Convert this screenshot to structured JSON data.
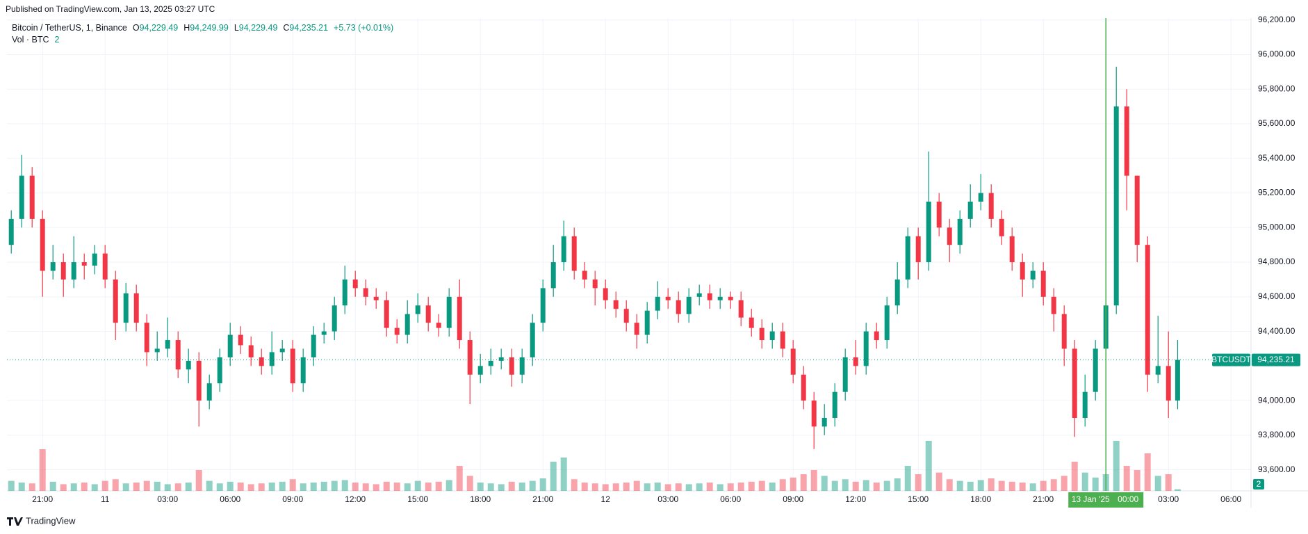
{
  "page": {
    "published": "Published on TradingView.com, Jan 13, 2025 03:27 UTC",
    "brand": "TradingView"
  },
  "chart_data": {
    "type": "candlestick",
    "legend": {
      "symbol": "Bitcoin / TetherUS, 1, Binance",
      "ohlc": [
        {
          "key": "O",
          "value": 94229.49,
          "label": "94,229.49"
        },
        {
          "key": "H",
          "value": 94249.99,
          "label": "94,249.99"
        },
        {
          "key": "L",
          "value": 94229.49,
          "label": "94,229.49"
        },
        {
          "key": "C",
          "value": 94235.21,
          "label": "94,235.21"
        }
      ],
      "change": "+5.73 (+0.01%)",
      "volume_label": "Vol · BTC"
    },
    "up_color": "#089981",
    "down_color": "#f23645",
    "grid": true,
    "x": [
      -4.5,
      -4,
      -3.5,
      -3,
      -2.5,
      -2,
      -1.5,
      -1,
      -0.5,
      0,
      0.5,
      1,
      1.5,
      2,
      2.5,
      3,
      3.5,
      4,
      4.5,
      5,
      5.5,
      6,
      6.5,
      7,
      7.5,
      8,
      8.5,
      9,
      9.5,
      10,
      10.5,
      11,
      11.5,
      12,
      12.5,
      13,
      13.5,
      14,
      14.5,
      15,
      15.5,
      16,
      16.5,
      17,
      17.5,
      18,
      18.5,
      19,
      19.5,
      20,
      20.5,
      21,
      21.5,
      22,
      22.5,
      23,
      23.5,
      24,
      24.5,
      25,
      25.5,
      26,
      26.5,
      27,
      27.5,
      28,
      28.5,
      29,
      29.5,
      30,
      30.5,
      31,
      31.5,
      32,
      32.5,
      33,
      33.5,
      34,
      34.5,
      35,
      35.5,
      36,
      36.5,
      37,
      37.5,
      38,
      38.5,
      39,
      39.5,
      40,
      40.5,
      41,
      41.5,
      42,
      42.5,
      43,
      43.5,
      44,
      44.5,
      45,
      45.5,
      46,
      46.5,
      47,
      47.5,
      48,
      48.5,
      49,
      49.5,
      50,
      50.5,
      51,
      51.44
    ],
    "open": [
      94900,
      95050,
      95300,
      95050,
      94750,
      94800,
      94700,
      94800,
      94780,
      94850,
      94700,
      94450,
      94620,
      94450,
      94280,
      94300,
      94350,
      94180,
      94230,
      94000,
      94100,
      94250,
      94380,
      94320,
      94250,
      94200,
      94280,
      94300,
      94100,
      94250,
      94380,
      94400,
      94550,
      94700,
      94650,
      94600,
      94580,
      94420,
      94380,
      94500,
      94550,
      94450,
      94420,
      94600,
      94350,
      94150,
      94200,
      94230,
      94250,
      94150,
      94250,
      94450,
      94650,
      94800,
      94950,
      94750,
      94700,
      94650,
      94580,
      94530,
      94450,
      94380,
      94520,
      94600,
      94580,
      94500,
      94600,
      94620,
      94580,
      94600,
      94580,
      94480,
      94420,
      94350,
      94400,
      94300,
      94150,
      94000,
      93850,
      93900,
      94050,
      94250,
      94200,
      94400,
      94350,
      94550,
      94700,
      94950,
      94800,
      95150,
      95000,
      94900,
      95050,
      95150,
      95200,
      95050,
      94950,
      94800,
      94700,
      94750,
      94600,
      94500,
      94300,
      93900,
      94050,
      94300,
      94550,
      95700,
      95300,
      94900,
      94150,
      94200,
      94000
    ],
    "high": [
      95100,
      95420,
      95350,
      95100,
      94900,
      94850,
      94950,
      94850,
      94900,
      94900,
      94750,
      94680,
      94670,
      94500,
      94400,
      94480,
      94400,
      94300,
      94280,
      94150,
      94300,
      94450,
      94430,
      94370,
      94300,
      94400,
      94350,
      94350,
      94300,
      94430,
      94450,
      94600,
      94780,
      94750,
      94700,
      94650,
      94630,
      94470,
      94580,
      94620,
      94600,
      94500,
      94650,
      94700,
      94400,
      94270,
      94300,
      94300,
      94300,
      94300,
      94500,
      94700,
      94900,
      95040,
      95000,
      94800,
      94750,
      94700,
      94630,
      94580,
      94500,
      94570,
      94690,
      94650,
      94630,
      94650,
      94670,
      94670,
      94650,
      94630,
      94630,
      94530,
      94470,
      94450,
      94450,
      94350,
      94200,
      94050,
      93980,
      94100,
      94300,
      94350,
      94450,
      94450,
      94600,
      94800,
      95000,
      95000,
      95440,
      95200,
      95050,
      95100,
      95250,
      95310,
      95250,
      95100,
      95000,
      94850,
      94800,
      94800,
      94650,
      94550,
      94350,
      94150,
      94350,
      94650,
      95930,
      95800,
      95300,
      94950,
      94490,
      94400,
      94350
    ],
    "low": [
      94850,
      95000,
      95000,
      94600,
      94700,
      94600,
      94650,
      94700,
      94730,
      94650,
      94350,
      94400,
      94400,
      94200,
      94230,
      94250,
      94130,
      94100,
      93850,
      93950,
      94050,
      94200,
      94270,
      94200,
      94150,
      94150,
      94230,
      94050,
      94050,
      94200,
      94330,
      94350,
      94500,
      94600,
      94550,
      94530,
      94370,
      94330,
      94330,
      94450,
      94400,
      94370,
      94370,
      94300,
      93980,
      94100,
      94150,
      94180,
      94080,
      94100,
      94200,
      94400,
      94600,
      94750,
      94700,
      94650,
      94550,
      94530,
      94480,
      94400,
      94300,
      94330,
      94470,
      94530,
      94450,
      94450,
      94550,
      94530,
      94530,
      94530,
      94430,
      94370,
      94300,
      94300,
      94250,
      94100,
      93950,
      93720,
      93800,
      93850,
      94000,
      94150,
      94150,
      94300,
      94300,
      94500,
      94650,
      94700,
      94750,
      94950,
      94800,
      94850,
      95000,
      95100,
      95000,
      94900,
      94750,
      94600,
      94650,
      94550,
      94400,
      94200,
      93790,
      93850,
      94000,
      94250,
      94500,
      95100,
      94800,
      94050,
      94100,
      93900,
      93950
    ],
    "close": [
      95050,
      95300,
      95050,
      94750,
      94800,
      94700,
      94800,
      94780,
      94850,
      94700,
      94450,
      94620,
      94450,
      94280,
      94300,
      94350,
      94180,
      94230,
      94000,
      94100,
      94250,
      94380,
      94320,
      94250,
      94200,
      94280,
      94300,
      94100,
      94250,
      94380,
      94400,
      94550,
      94700,
      94650,
      94600,
      94580,
      94420,
      94380,
      94500,
      94550,
      94450,
      94420,
      94600,
      94350,
      94150,
      94200,
      94230,
      94250,
      94150,
      94250,
      94450,
      94650,
      94800,
      94950,
      94750,
      94700,
      94650,
      94580,
      94530,
      94450,
      94380,
      94520,
      94600,
      94580,
      94500,
      94600,
      94620,
      94580,
      94600,
      94580,
      94480,
      94420,
      94350,
      94400,
      94300,
      94150,
      94000,
      93850,
      93900,
      94050,
      94250,
      94200,
      94400,
      94350,
      94550,
      94700,
      94950,
      94800,
      95150,
      95000,
      94900,
      95050,
      95150,
      95200,
      95050,
      94950,
      94800,
      94700,
      94750,
      94600,
      94500,
      94300,
      93900,
      94050,
      94300,
      94550,
      95700,
      95300,
      94900,
      94150,
      94200,
      94000,
      94235.21
    ],
    "volume": [
      12,
      10,
      9,
      50,
      11,
      8,
      9,
      10,
      8,
      12,
      14,
      9,
      10,
      12,
      11,
      8,
      9,
      10,
      25,
      12,
      9,
      11,
      10,
      8,
      9,
      10,
      11,
      14,
      9,
      10,
      11,
      12,
      13,
      10,
      9,
      8,
      11,
      10,
      9,
      12,
      10,
      11,
      13,
      30,
      18,
      10,
      9,
      8,
      11,
      10,
      12,
      15,
      35,
      40,
      14,
      10,
      9,
      8,
      9,
      10,
      12,
      9,
      10,
      8,
      9,
      8,
      9,
      10,
      8,
      9,
      10,
      11,
      12,
      10,
      14,
      16,
      20,
      25,
      18,
      12,
      14,
      11,
      13,
      10,
      12,
      15,
      30,
      20,
      60,
      22,
      14,
      12,
      11,
      13,
      15,
      12,
      11,
      10,
      9,
      12,
      14,
      18,
      35,
      22,
      16,
      20,
      60,
      30,
      25,
      45,
      18,
      20,
      2
    ],
    "volume_ylim": [
      0,
      80
    ],
    "xlim": [
      -4.707,
      54.96
    ],
    "xticks": [
      {
        "value": -3,
        "label": "21:00"
      },
      {
        "value": 0,
        "label": "11"
      },
      {
        "value": 3,
        "label": "03:00"
      },
      {
        "value": 6,
        "label": "06:00"
      },
      {
        "value": 9,
        "label": "09:00"
      },
      {
        "value": 12,
        "label": "12:00"
      },
      {
        "value": 15,
        "label": "15:00"
      },
      {
        "value": 18,
        "label": "18:00"
      },
      {
        "value": 21,
        "label": "21:00"
      },
      {
        "value": 24,
        "label": "12"
      },
      {
        "value": 27,
        "label": "03:00"
      },
      {
        "value": 30,
        "label": "06:00"
      },
      {
        "value": 33,
        "label": "09:00"
      },
      {
        "value": 36,
        "label": "12:00"
      },
      {
        "value": 39,
        "label": "15:00"
      },
      {
        "value": 42,
        "label": "18:00"
      },
      {
        "value": 45,
        "label": "21:00"
      },
      {
        "value": 51,
        "label": "03:00"
      },
      {
        "value": 54,
        "label": "06:00"
      }
    ],
    "ylim": [
      93478,
      96211
    ],
    "yticks": [
      {
        "value": 93600,
        "label": "93,600.00"
      },
      {
        "value": 93800,
        "label": "93,800.00"
      },
      {
        "value": 94000,
        "label": "94,000.00"
      },
      {
        "value": 94400,
        "label": "94,400.00"
      },
      {
        "value": 94600,
        "label": "94,600.00"
      },
      {
        "value": 94800,
        "label": "94,800.00"
      },
      {
        "value": 95000,
        "label": "95,000.00"
      },
      {
        "value": 95200,
        "label": "95,200.00"
      },
      {
        "value": 95400,
        "label": "95,400.00"
      },
      {
        "value": 95600,
        "label": "95,600.00"
      },
      {
        "value": 95800,
        "label": "95,800.00"
      },
      {
        "value": 96000,
        "label": "96,000.00"
      },
      {
        "value": 96200,
        "label": "96,200.00"
      }
    ],
    "last_price": {
      "symbol": "BTCUSDT",
      "value": 94235.21,
      "label": "94,235.21",
      "color": "#089981"
    },
    "crosshair": {
      "x": 48,
      "date_label": "13 Jan '25",
      "time_label": "00:00",
      "color": "#4caf50"
    }
  }
}
